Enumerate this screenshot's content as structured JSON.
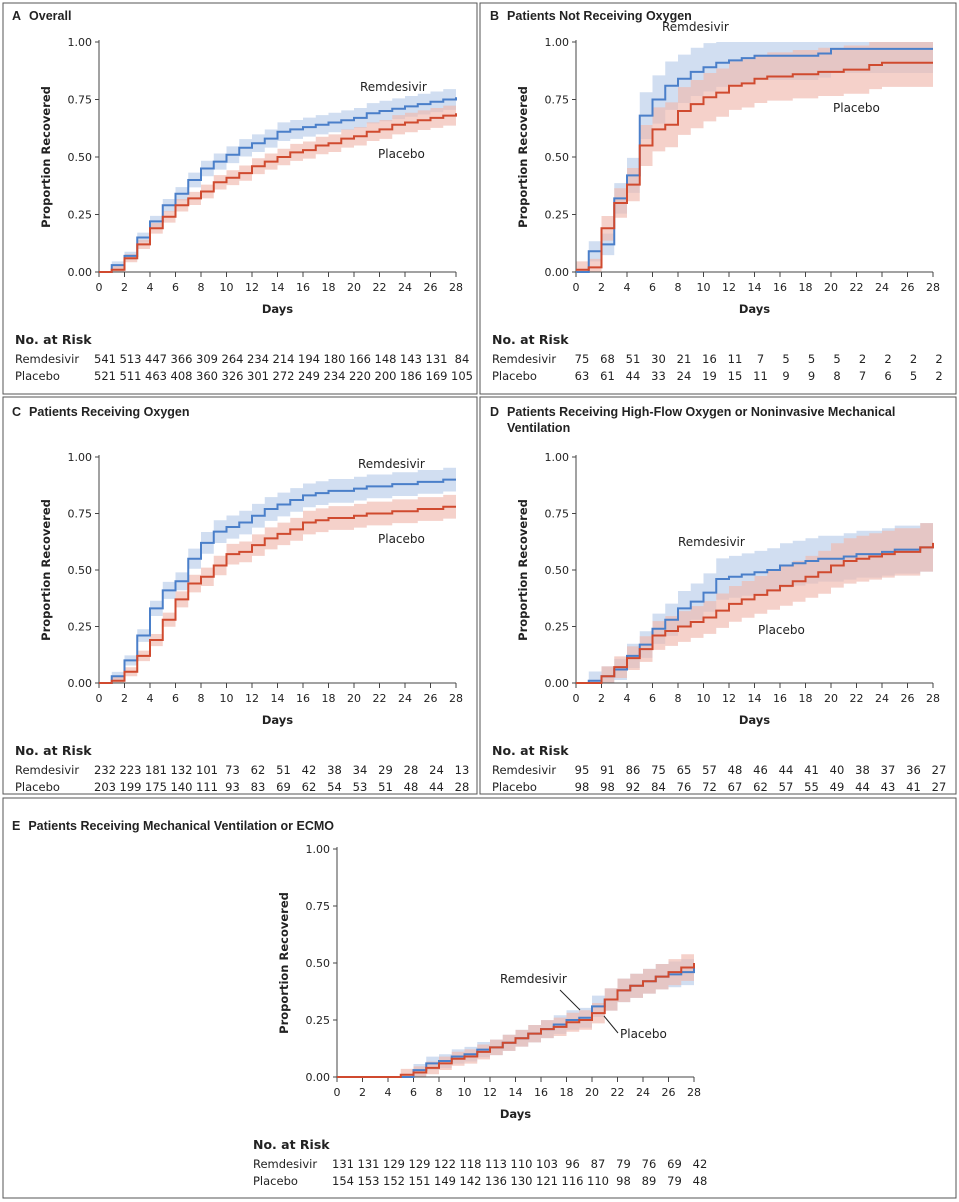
{
  "colors": {
    "remdesivir": "#4a7fc9",
    "placebo": "#d04a2f",
    "remdesivir_band": "#b9cde9",
    "placebo_band": "#f0b9ad"
  },
  "chart_data": [
    {
      "type": "line",
      "panel": "A",
      "title": "Overall",
      "xlabel": "Days",
      "ylabel": "Proportion Recovered",
      "xlim": [
        0,
        28
      ],
      "ylim": [
        0,
        1
      ],
      "xticks": [
        "0",
        "2",
        "4",
        "6",
        "8",
        "10",
        "12",
        "14",
        "16",
        "18",
        "20",
        "22",
        "24",
        "26",
        "28"
      ],
      "yticks": [
        "0.00",
        "0.25",
        "0.50",
        "0.75",
        "1.00"
      ],
      "x": [
        0,
        1,
        2,
        3,
        4,
        5,
        6,
        7,
        8,
        9,
        10,
        11,
        12,
        13,
        14,
        15,
        16,
        17,
        18,
        19,
        20,
        21,
        22,
        23,
        24,
        25,
        26,
        27,
        28
      ],
      "series": [
        {
          "name": "Remdesivir",
          "values": [
            0,
            0.03,
            0.07,
            0.15,
            0.22,
            0.29,
            0.34,
            0.4,
            0.45,
            0.48,
            0.51,
            0.54,
            0.56,
            0.58,
            0.61,
            0.62,
            0.63,
            0.64,
            0.65,
            0.66,
            0.67,
            0.69,
            0.7,
            0.71,
            0.72,
            0.73,
            0.74,
            0.75,
            0.76
          ]
        },
        {
          "name": "Placebo",
          "values": [
            0,
            0.01,
            0.06,
            0.12,
            0.19,
            0.24,
            0.29,
            0.32,
            0.35,
            0.39,
            0.41,
            0.43,
            0.46,
            0.48,
            0.5,
            0.52,
            0.53,
            0.55,
            0.56,
            0.58,
            0.59,
            0.61,
            0.62,
            0.64,
            0.65,
            0.66,
            0.67,
            0.68,
            0.69
          ]
        }
      ],
      "risk": {
        "heading": "No. at Risk",
        "rows": [
          {
            "label": "Remdesivir",
            "values": [
              "541",
              "513",
              "447",
              "366",
              "309",
              "264",
              "234",
              "214",
              "194",
              "180",
              "166",
              "148",
              "143",
              "131",
              "84"
            ]
          },
          {
            "label": "Placebo",
            "values": [
              "521",
              "511",
              "463",
              "408",
              "360",
              "326",
              "301",
              "272",
              "249",
              "234",
              "220",
              "200",
              "186",
              "169",
              "105"
            ]
          }
        ]
      }
    },
    {
      "type": "line",
      "panel": "B",
      "title": "Patients Not Receiving Oxygen",
      "xlabel": "Days",
      "ylabel": "Proportion Recovered",
      "xlim": [
        0,
        28
      ],
      "ylim": [
        0,
        1
      ],
      "xticks": [
        "0",
        "2",
        "4",
        "6",
        "8",
        "10",
        "12",
        "14",
        "16",
        "18",
        "20",
        "22",
        "24",
        "26",
        "28"
      ],
      "yticks": [
        "0.00",
        "0.25",
        "0.50",
        "0.75",
        "1.00"
      ],
      "x": [
        0,
        1,
        2,
        3,
        4,
        5,
        6,
        7,
        8,
        9,
        10,
        11,
        12,
        13,
        14,
        15,
        16,
        17,
        18,
        19,
        20,
        21,
        22,
        23,
        24,
        25,
        26,
        27,
        28
      ],
      "series": [
        {
          "name": "Remdesivir",
          "values": [
            0,
            0.09,
            0.12,
            0.32,
            0.42,
            0.68,
            0.75,
            0.81,
            0.84,
            0.87,
            0.89,
            0.91,
            0.92,
            0.93,
            0.94,
            0.94,
            0.94,
            0.94,
            0.94,
            0.95,
            0.97,
            0.97,
            0.97,
            0.97,
            0.97,
            0.97,
            0.97,
            0.97,
            0.97
          ]
        },
        {
          "name": "Placebo",
          "values": [
            0.01,
            0.02,
            0.19,
            0.3,
            0.38,
            0.55,
            0.62,
            0.64,
            0.7,
            0.73,
            0.76,
            0.78,
            0.81,
            0.82,
            0.84,
            0.85,
            0.85,
            0.86,
            0.86,
            0.87,
            0.87,
            0.88,
            0.88,
            0.9,
            0.91,
            0.91,
            0.91,
            0.91,
            0.91
          ]
        }
      ],
      "risk": {
        "heading": "No. at Risk",
        "rows": [
          {
            "label": "Remdesivir",
            "values": [
              "75",
              "68",
              "51",
              "30",
              "21",
              "16",
              "11",
              "7",
              "5",
              "5",
              "5",
              "2",
              "2",
              "2",
              "2"
            ]
          },
          {
            "label": "Placebo",
            "values": [
              "63",
              "61",
              "44",
              "33",
              "24",
              "19",
              "15",
              "11",
              "9",
              "9",
              "8",
              "7",
              "6",
              "5",
              "2"
            ]
          }
        ]
      }
    },
    {
      "type": "line",
      "panel": "C",
      "title": "Patients Receiving Oxygen",
      "xlabel": "Days",
      "ylabel": "Proportion Recovered",
      "xlim": [
        0,
        28
      ],
      "ylim": [
        0,
        1
      ],
      "xticks": [
        "0",
        "2",
        "4",
        "6",
        "8",
        "10",
        "12",
        "14",
        "16",
        "18",
        "20",
        "22",
        "24",
        "26",
        "28"
      ],
      "yticks": [
        "0.00",
        "0.25",
        "0.50",
        "0.75",
        "1.00"
      ],
      "x": [
        0,
        1,
        2,
        3,
        4,
        5,
        6,
        7,
        8,
        9,
        10,
        11,
        12,
        13,
        14,
        15,
        16,
        17,
        18,
        19,
        20,
        21,
        22,
        23,
        24,
        25,
        26,
        27,
        28
      ],
      "series": [
        {
          "name": "Remdesivir",
          "values": [
            0,
            0.03,
            0.1,
            0.21,
            0.33,
            0.41,
            0.45,
            0.55,
            0.62,
            0.67,
            0.69,
            0.71,
            0.74,
            0.77,
            0.79,
            0.81,
            0.83,
            0.84,
            0.85,
            0.85,
            0.86,
            0.87,
            0.87,
            0.88,
            0.88,
            0.89,
            0.89,
            0.9,
            0.9
          ]
        },
        {
          "name": "Placebo",
          "values": [
            0,
            0.01,
            0.05,
            0.12,
            0.19,
            0.28,
            0.37,
            0.44,
            0.47,
            0.52,
            0.57,
            0.58,
            0.61,
            0.64,
            0.66,
            0.68,
            0.71,
            0.72,
            0.73,
            0.73,
            0.74,
            0.75,
            0.75,
            0.76,
            0.76,
            0.77,
            0.77,
            0.78,
            0.78
          ]
        }
      ],
      "risk": {
        "heading": "No. at Risk",
        "rows": [
          {
            "label": "Remdesivir",
            "values": [
              "232",
              "223",
              "181",
              "132",
              "101",
              "73",
              "62",
              "51",
              "42",
              "38",
              "34",
              "29",
              "28",
              "24",
              "13"
            ]
          },
          {
            "label": "Placebo",
            "values": [
              "203",
              "199",
              "175",
              "140",
              "111",
              "93",
              "83",
              "69",
              "62",
              "54",
              "53",
              "51",
              "48",
              "44",
              "28"
            ]
          }
        ]
      }
    },
    {
      "type": "line",
      "panel": "D",
      "title": "Patients Receiving High-Flow Oxygen or Noninvasive Mechanical",
      "title_line2": "Ventilation",
      "xlabel": "Days",
      "ylabel": "Proportion Recovered",
      "xlim": [
        0,
        28
      ],
      "ylim": [
        0,
        1
      ],
      "xticks": [
        "0",
        "2",
        "4",
        "6",
        "8",
        "10",
        "12",
        "14",
        "16",
        "18",
        "20",
        "22",
        "24",
        "26",
        "28"
      ],
      "yticks": [
        "0.00",
        "0.25",
        "0.50",
        "0.75",
        "1.00"
      ],
      "x": [
        0,
        1,
        2,
        3,
        4,
        5,
        6,
        7,
        8,
        9,
        10,
        11,
        12,
        13,
        14,
        15,
        16,
        17,
        18,
        19,
        20,
        21,
        22,
        23,
        24,
        25,
        26,
        27,
        28
      ],
      "series": [
        {
          "name": "Remdesivir",
          "values": [
            0,
            0.01,
            0.03,
            0.06,
            0.12,
            0.17,
            0.24,
            0.28,
            0.33,
            0.36,
            0.4,
            0.46,
            0.47,
            0.48,
            0.49,
            0.5,
            0.52,
            0.53,
            0.54,
            0.55,
            0.55,
            0.56,
            0.57,
            0.57,
            0.58,
            0.59,
            0.59,
            0.6,
            0.61
          ]
        },
        {
          "name": "Placebo",
          "values": [
            0,
            0,
            0.03,
            0.07,
            0.11,
            0.15,
            0.21,
            0.23,
            0.25,
            0.27,
            0.29,
            0.32,
            0.35,
            0.37,
            0.39,
            0.41,
            0.43,
            0.45,
            0.47,
            0.49,
            0.52,
            0.54,
            0.55,
            0.56,
            0.57,
            0.58,
            0.58,
            0.6,
            0.62
          ]
        }
      ],
      "risk": {
        "heading": "No. at Risk",
        "rows": [
          {
            "label": "Remdesivir",
            "values": [
              "95",
              "91",
              "86",
              "75",
              "65",
              "57",
              "48",
              "46",
              "44",
              "41",
              "40",
              "38",
              "37",
              "36",
              "27"
            ]
          },
          {
            "label": "Placebo",
            "values": [
              "98",
              "98",
              "92",
              "84",
              "76",
              "72",
              "67",
              "62",
              "57",
              "55",
              "49",
              "44",
              "43",
              "41",
              "27"
            ]
          }
        ]
      }
    },
    {
      "type": "line",
      "panel": "E",
      "title": "Patients Receiving Mechanical Ventilation or ECMO",
      "xlabel": "Days",
      "ylabel": "Proportion Recovered",
      "xlim": [
        0,
        28
      ],
      "ylim": [
        0,
        1
      ],
      "xticks": [
        "0",
        "2",
        "4",
        "6",
        "8",
        "10",
        "12",
        "14",
        "16",
        "18",
        "20",
        "22",
        "24",
        "26",
        "28"
      ],
      "yticks": [
        "0.00",
        "0.25",
        "0.50",
        "0.75",
        "1.00"
      ],
      "x": [
        0,
        1,
        2,
        3,
        4,
        5,
        6,
        7,
        8,
        9,
        10,
        11,
        12,
        13,
        14,
        15,
        16,
        17,
        18,
        19,
        20,
        21,
        22,
        23,
        24,
        25,
        26,
        27,
        28
      ],
      "series": [
        {
          "name": "Remdesivir",
          "values": [
            0,
            0,
            0,
            0,
            0,
            0,
            0.03,
            0.06,
            0.07,
            0.09,
            0.1,
            0.12,
            0.13,
            0.15,
            0.17,
            0.19,
            0.21,
            0.23,
            0.25,
            0.26,
            0.31,
            0.34,
            0.38,
            0.4,
            0.42,
            0.44,
            0.45,
            0.46,
            0.48
          ]
        },
        {
          "name": "Placebo",
          "values": [
            0,
            0,
            0,
            0,
            0,
            0.01,
            0.02,
            0.04,
            0.06,
            0.08,
            0.09,
            0.11,
            0.13,
            0.15,
            0.17,
            0.19,
            0.21,
            0.22,
            0.24,
            0.25,
            0.28,
            0.34,
            0.38,
            0.4,
            0.42,
            0.44,
            0.46,
            0.48,
            0.5
          ]
        }
      ],
      "risk": {
        "heading": "No. at Risk",
        "rows": [
          {
            "label": "Remdesivir",
            "values": [
              "131",
              "131",
              "129",
              "129",
              "122",
              "118",
              "113",
              "110",
              "103",
              "96",
              "87",
              "79",
              "76",
              "69",
              "42"
            ]
          },
          {
            "label": "Placebo",
            "values": [
              "154",
              "153",
              "152",
              "151",
              "149",
              "142",
              "136",
              "130",
              "121",
              "116",
              "110",
              "98",
              "89",
              "79",
              "48"
            ]
          }
        ]
      }
    }
  ]
}
